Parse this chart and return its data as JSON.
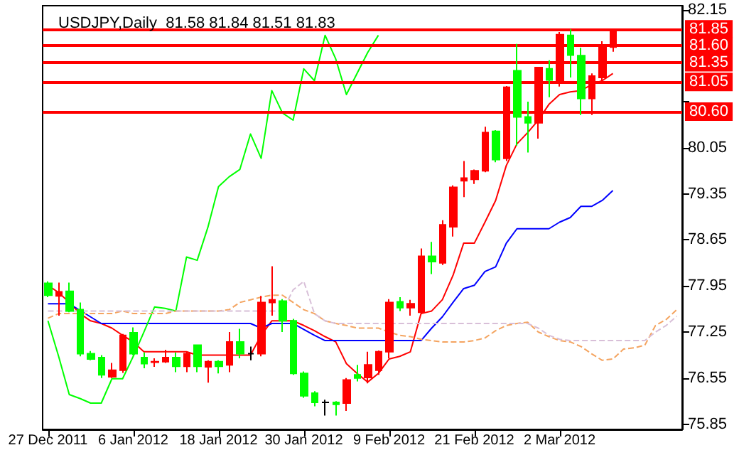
{
  "chart_data": {
    "type": "candlestick",
    "title": "USDJPY,Daily  81.58 81.84 81.51 81.83",
    "categories": [
      "27 Dec 2011",
      null,
      null,
      null,
      null,
      null,
      null,
      null,
      "6 Jan 2012",
      null,
      null,
      null,
      null,
      null,
      null,
      null,
      "18 Jan 2012",
      null,
      null,
      null,
      null,
      null,
      null,
      null,
      "30 Jan 2012",
      null,
      null,
      null,
      null,
      null,
      null,
      null,
      "9 Feb 2012",
      null,
      null,
      null,
      null,
      null,
      null,
      null,
      "21 Feb 2012",
      null,
      null,
      null,
      null,
      null,
      null,
      null,
      "2 Mar 2012",
      null,
      null,
      null,
      null,
      null,
      null,
      null,
      null,
      null,
      null,
      null
    ],
    "ohlc": [
      [
        77.99,
        78.02,
        77.78,
        77.81
      ],
      [
        77.8,
        78.0,
        77.5,
        77.86
      ],
      [
        77.87,
        78.0,
        77.55,
        77.57
      ],
      [
        77.59,
        77.7,
        76.88,
        76.92
      ],
      [
        76.92,
        76.96,
        76.82,
        76.84
      ],
      [
        76.86,
        76.9,
        76.55,
        76.6
      ],
      [
        76.57,
        76.78,
        76.55,
        76.67
      ],
      [
        76.67,
        77.22,
        76.63,
        77.2
      ],
      [
        77.24,
        77.32,
        76.9,
        76.92
      ],
      [
        76.86,
        76.94,
        76.7,
        76.77
      ],
      [
        76.79,
        76.85,
        76.72,
        76.8
      ],
      [
        76.8,
        76.98,
        76.78,
        76.86
      ],
      [
        76.86,
        76.94,
        76.64,
        76.73
      ],
      [
        76.73,
        76.95,
        76.64,
        76.92
      ],
      [
        77.05,
        77.05,
        76.64,
        76.73
      ],
      [
        76.72,
        76.82,
        76.48,
        76.8
      ],
      [
        76.8,
        76.82,
        76.62,
        76.73
      ],
      [
        76.75,
        77.25,
        76.64,
        77.1
      ],
      [
        77.1,
        77.3,
        76.85,
        76.92
      ],
      [
        76.92,
        77.03,
        76.82,
        76.92
      ],
      [
        76.92,
        77.8,
        76.88,
        77.7
      ],
      [
        77.7,
        78.25,
        77.5,
        77.74
      ],
      [
        77.72,
        77.75,
        77.25,
        77.42
      ],
      [
        77.42,
        77.45,
        76.6,
        76.62
      ],
      [
        76.62,
        76.65,
        76.25,
        76.28
      ],
      [
        76.32,
        76.35,
        76.12,
        76.18
      ],
      [
        76.18,
        76.22,
        75.98,
        76.18
      ],
      [
        76.18,
        76.2,
        75.98,
        76.15
      ],
      [
        76.17,
        76.55,
        76.05,
        76.52
      ],
      [
        76.6,
        76.75,
        76.5,
        76.55
      ],
      [
        76.56,
        76.95,
        76.47,
        76.75
      ],
      [
        76.67,
        76.97,
        76.6,
        76.95
      ],
      [
        76.95,
        77.75,
        76.85,
        77.7
      ],
      [
        77.71,
        77.78,
        77.57,
        77.62
      ],
      [
        77.62,
        77.74,
        77.5,
        77.68
      ],
      [
        77.55,
        78.52,
        77.52,
        78.4
      ],
      [
        78.4,
        78.62,
        78.13,
        78.32
      ],
      [
        78.3,
        78.95,
        78.27,
        78.88
      ],
      [
        78.85,
        79.48,
        78.7,
        79.45
      ],
      [
        79.55,
        79.85,
        79.3,
        79.59
      ],
      [
        79.57,
        79.72,
        79.5,
        79.7
      ],
      [
        79.7,
        80.37,
        79.68,
        80.28
      ],
      [
        80.3,
        80.32,
        79.83,
        79.87
      ],
      [
        79.89,
        80.99,
        79.85,
        80.97
      ],
      [
        81.22,
        81.63,
        80.08,
        80.52
      ],
      [
        80.52,
        80.75,
        79.98,
        80.43
      ],
      [
        80.43,
        81.27,
        80.19,
        81.27
      ],
      [
        81.25,
        81.38,
        80.82,
        81.08
      ],
      [
        81.07,
        81.81,
        80.98,
        81.77
      ],
      [
        81.76,
        81.85,
        81.12,
        81.46
      ],
      [
        81.45,
        81.57,
        80.55,
        80.8
      ],
      [
        80.8,
        81.18,
        80.55,
        81.14
      ],
      [
        81.12,
        81.67,
        81.05,
        81.59
      ],
      [
        81.58,
        81.84,
        81.51,
        81.83
      ],
      null,
      null,
      null,
      null,
      null,
      null
    ],
    "colors": [
      "#00ff00",
      "#ff0000",
      "#00ff00",
      "#00ff00",
      "#00ff00",
      "#00ff00",
      "#ff0000",
      "#ff0000",
      "#00ff00",
      "#00ff00",
      "#ff0000",
      "#ff0000",
      "#00ff00",
      "#ff0000",
      "#00ff00",
      "#ff0000",
      "#00ff00",
      "#ff0000",
      "#00ff00",
      "#000000",
      "#ff0000",
      "#ff0000",
      "#00ff00",
      "#00ff00",
      "#00ff00",
      "#00ff00",
      "#000000",
      "#00ff00",
      "#ff0000",
      "#00ff00",
      "#ff0000",
      "#ff0000",
      "#ff0000",
      "#00ff00",
      "#ff0000",
      "#ff0000",
      "#00ff00",
      "#ff0000",
      "#ff0000",
      "#ff0000",
      "#ff0000",
      "#ff0000",
      "#00ff00",
      "#ff0000",
      "#00ff00",
      "#00ff00",
      "#ff0000",
      "#00ff00",
      "#ff0000",
      "#00ff00",
      "#00ff00",
      "#ff0000",
      "#ff0000",
      "#ff0000",
      null,
      null,
      null,
      null,
      null,
      null
    ],
    "series": [
      {
        "type": "line",
        "color": "#ff0000",
        "line_style": "solid",
        "values": [
          77.96,
          77.85,
          77.7,
          77.53,
          77.42,
          77.38,
          77.31,
          77.2,
          77.1,
          76.95,
          76.95,
          76.95,
          76.95,
          76.95,
          76.9,
          76.9,
          76.9,
          76.9,
          76.9,
          76.9,
          77.2,
          77.42,
          77.42,
          77.42,
          77.35,
          77.27,
          77.18,
          77.1,
          76.77,
          76.62,
          76.49,
          76.62,
          76.84,
          76.88,
          76.95,
          77.53,
          77.57,
          77.74,
          78.11,
          78.6,
          78.6,
          78.92,
          79.25,
          79.78,
          80.11,
          80.28,
          80.47,
          80.71,
          80.86,
          80.9,
          80.92,
          81.01,
          81.07,
          81.18,
          null,
          null,
          null,
          null,
          null,
          null
        ]
      },
      {
        "type": "line",
        "color": "#0000ff",
        "line_style": "solid",
        "values": [
          77.68,
          77.68,
          77.68,
          77.58,
          77.48,
          77.38,
          77.38,
          77.38,
          77.38,
          77.38,
          77.38,
          77.38,
          77.38,
          77.38,
          77.38,
          77.38,
          77.38,
          77.38,
          77.38,
          77.38,
          77.31,
          77.38,
          77.38,
          77.38,
          77.29,
          77.2,
          77.12,
          77.12,
          77.12,
          77.12,
          77.12,
          77.12,
          77.12,
          77.12,
          77.12,
          77.12,
          77.31,
          77.48,
          77.7,
          77.91,
          77.96,
          78.17,
          78.24,
          78.6,
          78.82,
          78.82,
          78.82,
          78.82,
          78.92,
          78.99,
          79.16,
          79.16,
          79.25,
          79.4,
          null,
          null,
          null,
          null,
          null,
          null
        ]
      },
      {
        "type": "line",
        "color": "#00ff00",
        "line_style": "solid",
        "values": [
          77.42,
          76.88,
          76.3,
          76.24,
          76.17,
          76.17,
          76.54,
          76.54,
          76.88,
          77.25,
          77.63,
          77.61,
          77.57,
          78.39,
          78.34,
          78.84,
          79.46,
          79.61,
          79.72,
          80.26,
          79.89,
          80.92,
          80.58,
          80.47,
          81.25,
          81.07,
          81.76,
          81.4,
          80.86,
          81.18,
          81.5,
          81.76,
          null,
          null,
          null,
          null,
          null,
          null,
          null,
          null,
          null,
          null,
          null,
          null,
          null,
          null,
          null,
          null,
          null,
          null,
          null,
          null,
          null,
          null,
          null,
          null,
          null,
          null,
          null,
          null
        ]
      },
      {
        "type": "line",
        "color": "#f4a460",
        "line_style": "dashed",
        "values": [
          77.46,
          77.53,
          77.53,
          77.53,
          77.53,
          77.53,
          77.53,
          77.57,
          77.53,
          77.53,
          77.53,
          77.53,
          77.57,
          77.57,
          77.57,
          77.57,
          77.57,
          77.59,
          77.7,
          77.74,
          77.78,
          77.81,
          77.81,
          77.7,
          77.59,
          77.53,
          77.42,
          77.38,
          77.35,
          77.31,
          77.31,
          77.31,
          77.25,
          77.2,
          77.18,
          77.14,
          77.12,
          77.1,
          77.1,
          77.1,
          77.12,
          77.16,
          77.27,
          77.35,
          77.38,
          77.4,
          77.25,
          77.18,
          77.12,
          77.1,
          77.03,
          76.92,
          76.82,
          76.84,
          76.99,
          77.01,
          77.05,
          77.35,
          77.44,
          77.59
        ]
      },
      {
        "type": "line",
        "color": "#d8bfd8",
        "line_style": "dashed",
        "values": [
          77.57,
          77.57,
          77.57,
          77.57,
          77.57,
          77.57,
          77.57,
          77.57,
          77.57,
          77.57,
          77.57,
          77.57,
          77.57,
          77.57,
          77.57,
          77.57,
          77.57,
          77.57,
          77.57,
          77.57,
          77.57,
          77.57,
          77.57,
          77.89,
          78.02,
          77.53,
          77.42,
          77.38,
          77.38,
          77.38,
          77.38,
          77.38,
          77.38,
          77.38,
          77.38,
          77.38,
          77.38,
          77.38,
          77.38,
          77.38,
          77.38,
          77.38,
          77.38,
          77.38,
          77.38,
          77.38,
          77.31,
          77.2,
          77.14,
          77.12,
          77.12,
          77.12,
          77.12,
          77.12,
          77.12,
          77.12,
          77.12,
          77.25,
          77.35,
          77.49
        ]
      }
    ],
    "ylim": [
      75.77,
      82.21
    ],
    "yticks": [
      75.85,
      76.55,
      77.25,
      77.95,
      78.65,
      79.35,
      80.05,
      {
        "value": 80.75,
        "label": null
      },
      82.15
    ],
    "ref_lines": [
      {
        "axis": "y",
        "value": 81.85,
        "label": "81.85",
        "color": "#ff0000"
      },
      {
        "axis": "y",
        "value": 81.6,
        "label": "81.60",
        "color": "#ff0000"
      },
      {
        "axis": "y",
        "value": 81.35,
        "label": "81.35",
        "color": "#ff0000"
      },
      {
        "axis": "y",
        "value": 81.05,
        "label": "81.05",
        "color": "#ff0000"
      },
      {
        "axis": "y",
        "value": 80.6,
        "label": "80.60",
        "color": "#ff0000"
      }
    ],
    "grid": false
  }
}
